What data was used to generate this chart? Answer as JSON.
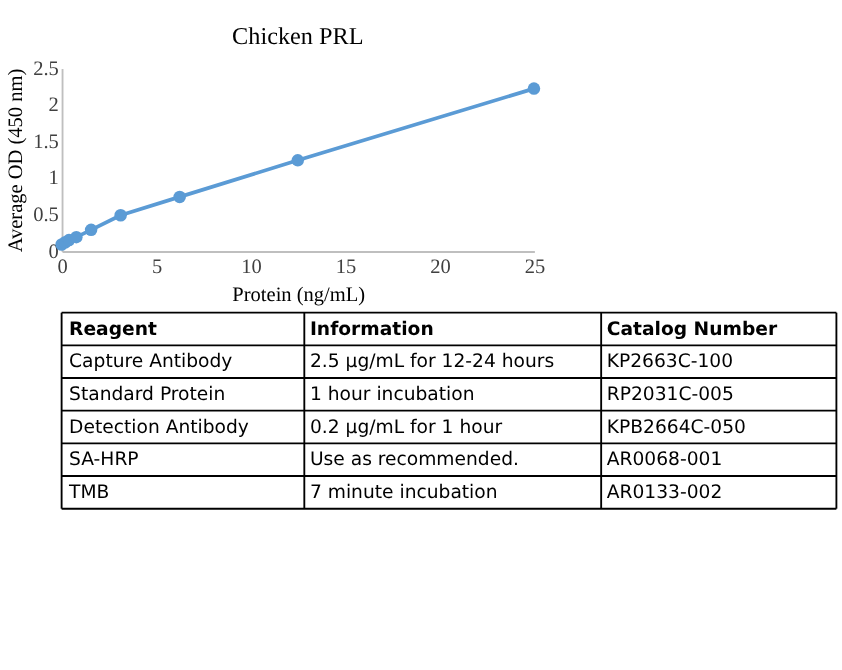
{
  "chart_data": {
    "type": "line",
    "title": "Chicken PRL",
    "xlabel": "Protein (ng/mL)",
    "ylabel": "Average OD (450 nm)",
    "x": [
      0,
      0.195,
      0.39,
      0.78,
      1.5625,
      3.125,
      6.25,
      12.5,
      25
    ],
    "series": [
      {
        "color": "#5b9bd5",
        "values": [
          0.09,
          0.12,
          0.15,
          0.19,
          0.29,
          0.49,
          0.74,
          1.24,
          2.22
        ]
      }
    ],
    "xlim": [
      0,
      25
    ],
    "xticks": [
      0,
      5,
      10,
      15,
      20,
      25
    ],
    "ylim": [
      0,
      2.5
    ],
    "yticks": [
      0,
      0.5,
      1,
      1.5,
      2,
      2.5
    ],
    "marker": "circle",
    "line_style": "solid",
    "grid": false,
    "annotations": [
      "Reagent",
      "Information",
      "Catalog Number",
      "Capture Antibody",
      "2.5 µg/mL for 12-24 hours",
      "KP2663C-100",
      "Standard Protein",
      "1 hour incubation",
      "RP2031C-005",
      "Detection Antibody",
      "0.2 µg/mL for 1 hour",
      "KPB2664C-050",
      "SA-HRP",
      "Use as recommended.",
      "AR0068-001",
      "TMB",
      "7 minute incubation",
      "AR0133-002"
    ]
  }
}
